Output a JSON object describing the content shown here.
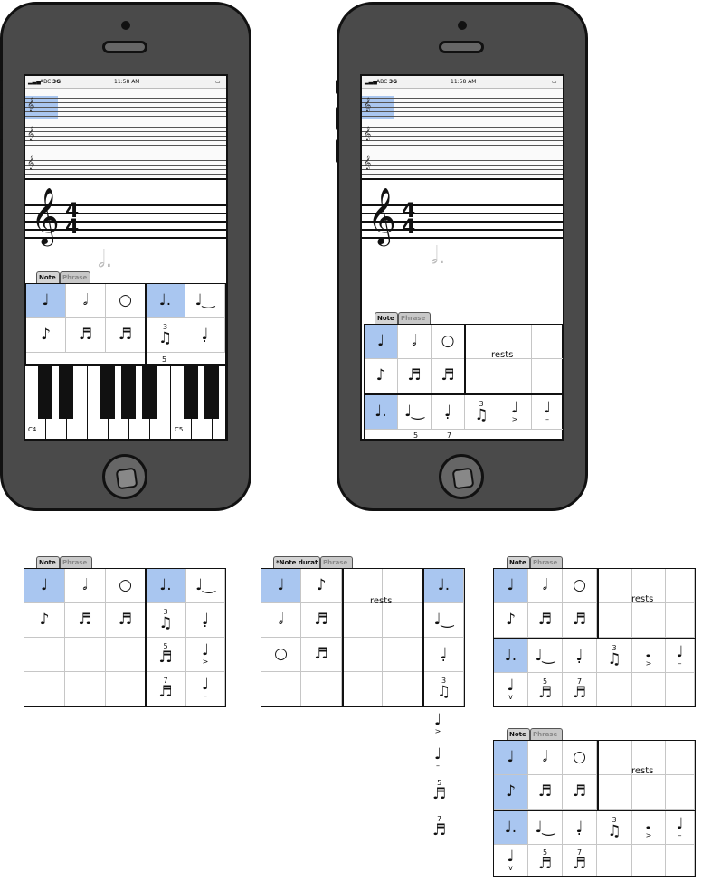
{
  "status_bar": {
    "carrier": "ABC",
    "network": "3G",
    "time": "11:58 AM"
  },
  "tabs": {
    "note": "Note",
    "phrase": "Phrase",
    "note_duration": "*Note durat"
  },
  "rests_label": "rests",
  "piano": {
    "left_label": "C4",
    "right_label": "C5"
  },
  "tuplets": {
    "triplet": "3",
    "quintuplet": "5",
    "septuplet": "7"
  },
  "time_signature": {
    "top": "4",
    "bottom": "4"
  },
  "icons": {
    "quarter": "quarter-note-icon",
    "half": "half-note-icon",
    "whole": "whole-note-icon",
    "dotted": "dotted-quarter-note-icon",
    "tie": "tied-note-icon",
    "staccato": "staccato-note-icon",
    "accent": "accent-note-icon",
    "tenuto": "tenuto-note-icon"
  },
  "colors": {
    "selected": "#a9c6f0",
    "phone_body": "#4a4a4a"
  }
}
